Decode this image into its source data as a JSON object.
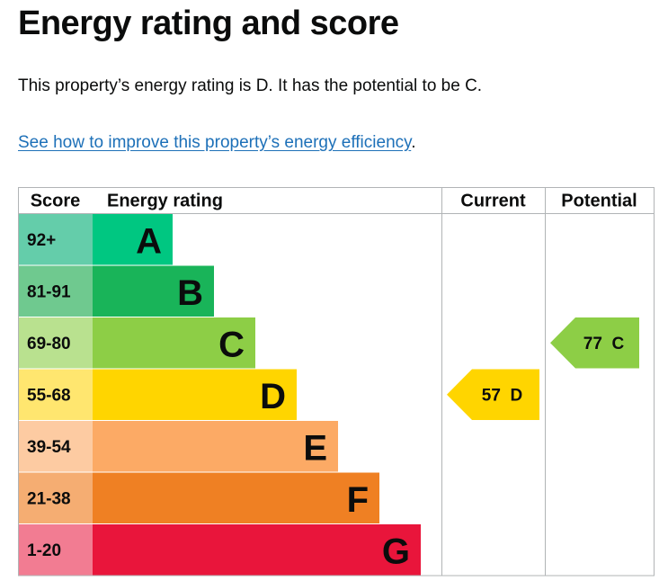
{
  "page": {
    "title": "Energy rating and score",
    "summary": "This property’s energy rating is D. It has the potential to be C.",
    "link_text": "See how to improve this property’s energy efficiency",
    "link_suffix": "."
  },
  "chart_data": {
    "type": "bar",
    "headers": {
      "score": "Score",
      "rating": "Energy rating",
      "current": "Current",
      "potential": "Potential"
    },
    "bands": [
      {
        "letter": "A",
        "range": "92+",
        "color": "#00c781",
        "range_color": "#64cdaa"
      },
      {
        "letter": "B",
        "range": "81-91",
        "color": "#19b459",
        "range_color": "#6fc98f"
      },
      {
        "letter": "C",
        "range": "69-80",
        "color": "#8dce46",
        "range_color": "#b9e18f"
      },
      {
        "letter": "D",
        "range": "55-68",
        "color": "#ffd500",
        "range_color": "#ffe66f"
      },
      {
        "letter": "E",
        "range": "39-54",
        "color": "#fcaa65",
        "range_color": "#fdcba2"
      },
      {
        "letter": "F",
        "range": "21-38",
        "color": "#ef8023",
        "range_color": "#f5ad72"
      },
      {
        "letter": "G",
        "range": "1-20",
        "color": "#e9153b",
        "range_color": "#f27c92"
      }
    ],
    "current": {
      "score": 57,
      "band": "D",
      "label": "57  D",
      "color": "#ffd500"
    },
    "potential": {
      "score": 77,
      "band": "C",
      "label": "77  C",
      "color": "#8dce46"
    }
  }
}
